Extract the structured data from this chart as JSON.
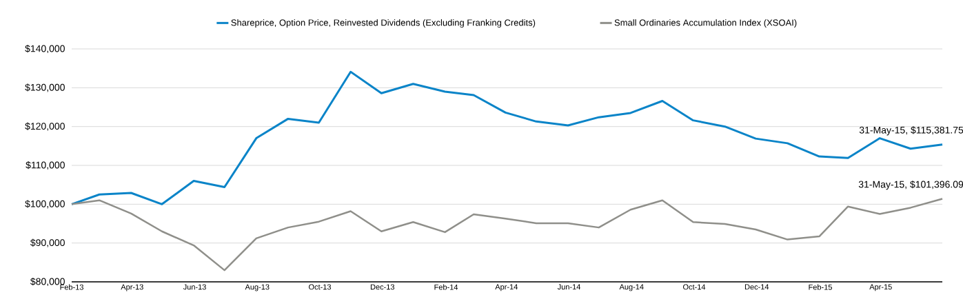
{
  "chart_data": {
    "type": "line",
    "series": [
      {
        "name": "Shareprice, Option Price, Reinvested Dividends (Excluding Franking Credits)",
        "color": "#0a84c8",
        "x": [
          "2013-02-01",
          "2013-02-28",
          "2013-03-31",
          "2013-04-30",
          "2013-05-31",
          "2013-06-30",
          "2013-07-31",
          "2013-08-31",
          "2013-09-30",
          "2013-10-31",
          "2013-11-30",
          "2013-12-31",
          "2014-01-31",
          "2014-02-28",
          "2014-03-31",
          "2014-04-30",
          "2014-05-31",
          "2014-06-30",
          "2014-07-31",
          "2014-08-31",
          "2014-09-30",
          "2014-10-31",
          "2014-11-30",
          "2014-12-31",
          "2015-01-31",
          "2015-02-28",
          "2015-03-31",
          "2015-04-30",
          "2015-05-31"
        ],
        "values": [
          100000,
          102500,
          102900,
          100000,
          106000,
          104400,
          117000,
          122000,
          121000,
          134100,
          128600,
          131000,
          129000,
          128100,
          123600,
          121300,
          120300,
          122400,
          123500,
          126600,
          121600,
          120000,
          116900,
          115700,
          112300,
          111900,
          117000,
          114300,
          115381.75
        ]
      },
      {
        "name": "Small Ordinaries Accumulation Index (XSOAI)",
        "color": "#8f8f8a",
        "x": [
          "2013-02-01",
          "2013-02-28",
          "2013-03-31",
          "2013-04-30",
          "2013-05-31",
          "2013-06-30",
          "2013-07-31",
          "2013-08-31",
          "2013-09-30",
          "2013-10-31",
          "2013-11-30",
          "2013-12-31",
          "2014-01-31",
          "2014-02-28",
          "2014-03-31",
          "2014-04-30",
          "2014-05-31",
          "2014-06-30",
          "2014-07-31",
          "2014-08-31",
          "2014-09-30",
          "2014-10-31",
          "2014-11-30",
          "2014-12-31",
          "2015-01-31",
          "2015-02-28",
          "2015-03-31",
          "2015-04-30",
          "2015-05-31"
        ],
        "values": [
          100000,
          101000,
          97600,
          93000,
          89400,
          83000,
          91200,
          94000,
          95500,
          98200,
          93000,
          95400,
          92800,
          97400,
          96300,
          95100,
          95100,
          94000,
          98600,
          101000,
          95400,
          94900,
          93500,
          90900,
          91700,
          99400,
          97500,
          99100,
          101396.09
        ]
      }
    ],
    "xlim": [
      "2013-02-01",
      "2015-05-31"
    ],
    "xticks": [
      {
        "value": "2013-02-01",
        "label": "Feb-13"
      },
      {
        "value": "2013-04-01",
        "label": "Apr-13"
      },
      {
        "value": "2013-06-01",
        "label": "Jun-13"
      },
      {
        "value": "2013-08-01",
        "label": "Aug-13"
      },
      {
        "value": "2013-10-01",
        "label": "Oct-13"
      },
      {
        "value": "2013-12-01",
        "label": "Dec-13"
      },
      {
        "value": "2014-02-01",
        "label": "Feb-14"
      },
      {
        "value": "2014-04-01",
        "label": "Apr-14"
      },
      {
        "value": "2014-06-01",
        "label": "Jun-14"
      },
      {
        "value": "2014-08-01",
        "label": "Aug-14"
      },
      {
        "value": "2014-10-01",
        "label": "Oct-14"
      },
      {
        "value": "2014-12-01",
        "label": "Dec-14"
      },
      {
        "value": "2015-02-01",
        "label": "Feb-15"
      },
      {
        "value": "2015-04-01",
        "label": "Apr-15"
      }
    ],
    "ylim": [
      80000,
      140000
    ],
    "yticks": [
      {
        "value": 80000,
        "label": "$80,000"
      },
      {
        "value": 90000,
        "label": "$90,000"
      },
      {
        "value": 100000,
        "label": "$100,000"
      },
      {
        "value": 110000,
        "label": "$110,000"
      },
      {
        "value": 120000,
        "label": "$120,000"
      },
      {
        "value": 130000,
        "label": "$130,000"
      },
      {
        "value": 140000,
        "label": "$140,000"
      }
    ],
    "grid": "y",
    "legend": "top",
    "annotations": [
      {
        "text": "31-May-15, $115,381.75",
        "x": "2015-05-31",
        "y": 115381.75
      },
      {
        "text": "31-May-15, $101,396.09",
        "x": "2015-05-31",
        "y": 101396.09
      }
    ]
  }
}
